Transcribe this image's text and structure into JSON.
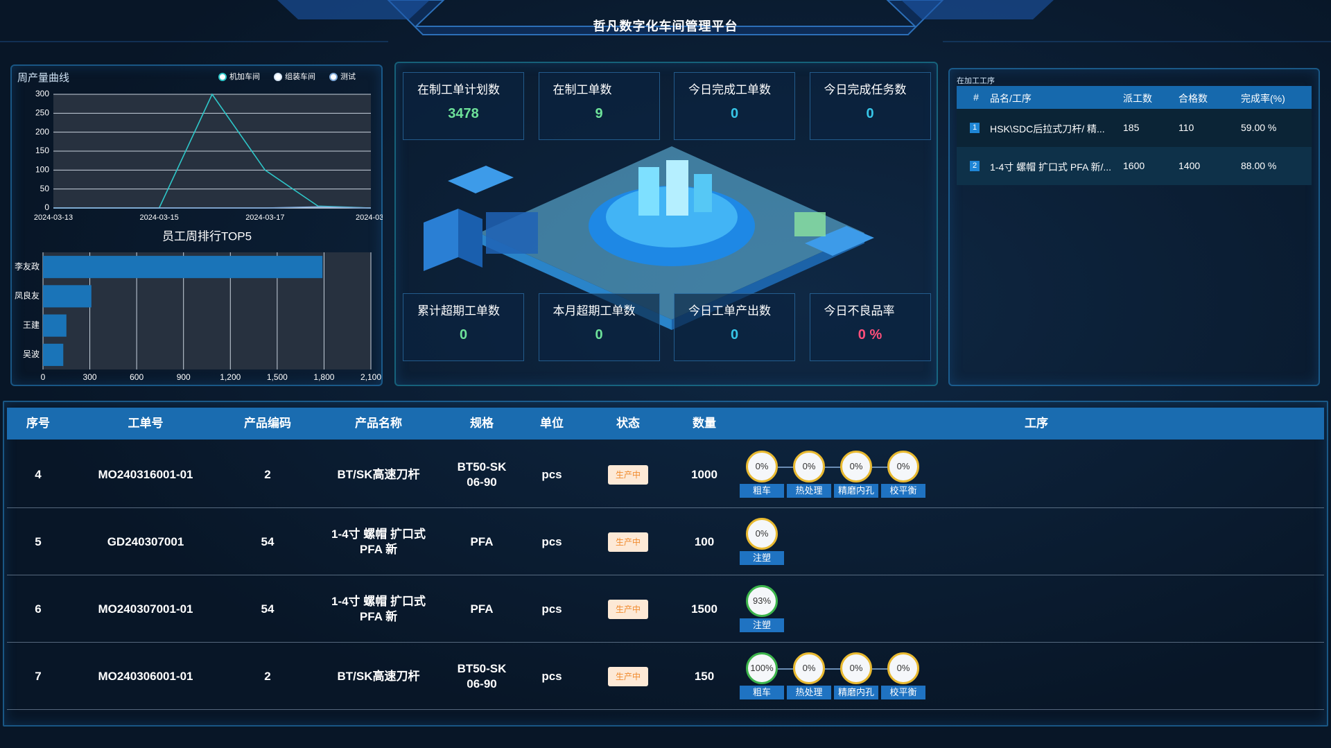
{
  "header": {
    "title": "哲凡数字化车间管理平台"
  },
  "chart_data": [
    {
      "type": "line",
      "title": "周产量曲线",
      "x": [
        "2024-03-13",
        null,
        "2024-03-15",
        null,
        "2024-03-17",
        null,
        "2024-03-"
      ],
      "series": [
        {
          "name": "机加车间",
          "color": "#2ec7c9",
          "values": [
            0,
            0,
            0,
            300,
            100,
            5,
            0
          ]
        },
        {
          "name": "组装车间",
          "color": "#d8e6f5",
          "values": [
            0,
            0,
            0,
            0,
            0,
            0,
            0
          ]
        },
        {
          "name": "测试",
          "color": "#7fa9d9",
          "values": [
            0,
            0,
            0,
            0,
            0,
            3,
            0
          ]
        }
      ],
      "ylim": [
        0,
        300
      ],
      "yticks": [
        0,
        50,
        100,
        150,
        200,
        250,
        300
      ],
      "grid": true,
      "legend": "top-right"
    },
    {
      "type": "bar",
      "orientation": "horizontal",
      "title": "员工周排行TOP5",
      "categories": [
        "李友政",
        "凤良友",
        "王建",
        "吴波"
      ],
      "values": [
        1790,
        310,
        150,
        130
      ],
      "color": "#1a74b8",
      "xlim": [
        0,
        2100
      ],
      "xticks": [
        0,
        300,
        600,
        900,
        {
          "value": 1200,
          "label": "1,200"
        },
        {
          "value": 1500,
          "label": "1,500"
        },
        {
          "value": 1800,
          "label": "1,800"
        },
        {
          "value": 2100,
          "label": "2,100"
        }
      ],
      "grid": true
    }
  ],
  "stats": [
    {
      "label": "在制工单计划数",
      "value": "3478",
      "color": "#6ee29a"
    },
    {
      "label": "在制工单数",
      "value": "9",
      "color": "#6ee29a"
    },
    {
      "label": "今日完成工单数",
      "value": "0",
      "color": "#37c6e8"
    },
    {
      "label": "今日完成任务数",
      "value": "0",
      "color": "#37c6e8"
    },
    {
      "label": "累计超期工单数",
      "value": "0",
      "color": "#6ee29a"
    },
    {
      "label": "本月超期工单数",
      "value": "0",
      "color": "#6ee29a"
    },
    {
      "label": "今日工单产出数",
      "value": "0",
      "color": "#37c6e8"
    },
    {
      "label": "今日不良品率",
      "value": "0 %",
      "color": "#ff4f7a"
    }
  ],
  "process_panel": {
    "title": "在加工工序",
    "header": [
      "#",
      "品名/工序",
      "派工数",
      "合格数",
      "完成率(%)"
    ],
    "rows": [
      [
        "1",
        "HSK\\SDC后拉式刀杆/ 精...",
        "185",
        "110",
        "59.00 %"
      ],
      [
        "2",
        "1-4寸 螺帽 扩口式 PFA 新/...",
        "1600",
        "1400",
        "88.00 %"
      ]
    ]
  },
  "table": {
    "header": [
      "序号",
      "工单号",
      "产品编码",
      "产品名称",
      "规格",
      "单位",
      "状态",
      "数量",
      "工序"
    ],
    "rows": [
      {
        "cells": [
          "4",
          "MO240316001-01",
          "2",
          "BT/SK高速刀杆",
          "BT50-SK 06-90",
          "pcs",
          "生产中",
          "1000"
        ],
        "processes": [
          {
            "pct": "0%",
            "name": "粗车",
            "color": "#e8b930"
          },
          {
            "pct": "0%",
            "name": "热处理",
            "color": "#e8b930"
          },
          {
            "pct": "0%",
            "name": "精磨内孔",
            "color": "#e8b930"
          },
          {
            "pct": "0%",
            "name": "校平衡",
            "color": "#e8b930"
          }
        ]
      },
      {
        "cells": [
          "5",
          "GD240307001",
          "54",
          "1-4寸 螺帽 扩口式 PFA 新",
          "PFA",
          "pcs",
          "生产中",
          "100"
        ],
        "processes": [
          {
            "pct": "0%",
            "name": "注塑",
            "color": "#e8b930"
          }
        ]
      },
      {
        "cells": [
          "6",
          "MO240307001-01",
          "54",
          "1-4寸 螺帽 扩口式 PFA 新",
          "PFA",
          "pcs",
          "生产中",
          "1500"
        ],
        "processes": [
          {
            "pct": "93%",
            "name": "注塑",
            "color": "#3cb44b"
          }
        ]
      },
      {
        "cells": [
          "7",
          "MO240306001-01",
          "2",
          "BT/SK高速刀杆",
          "BT50-SK 06-90",
          "pcs",
          "生产中",
          "150"
        ],
        "processes": [
          {
            "pct": "100%",
            "name": "粗车",
            "color": "#3cb44b"
          },
          {
            "pct": "0%",
            "name": "热处理",
            "color": "#e8b930"
          },
          {
            "pct": "0%",
            "name": "精磨内孔",
            "color": "#e8b930"
          },
          {
            "pct": "0%",
            "name": "校平衡",
            "color": "#e8b930"
          }
        ]
      }
    ]
  }
}
